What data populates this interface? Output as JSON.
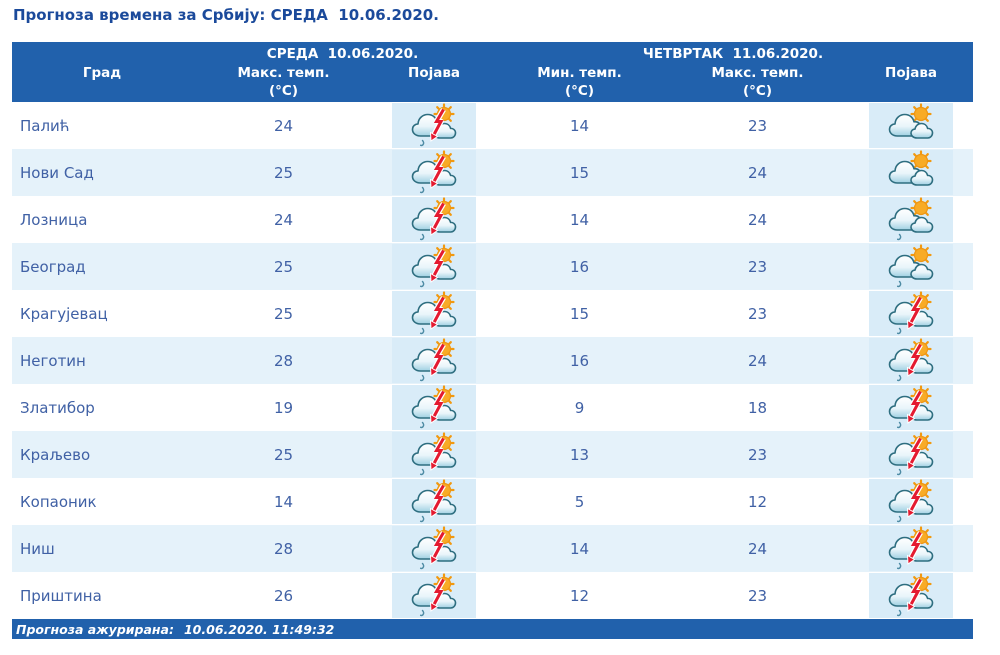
{
  "page": {
    "title": "Прогноза времена за Србију: СРЕДА  10.06.2020.",
    "updated_label": "Прогноза ажурирана:",
    "updated_value": "10.06.2020. 11:49:32"
  },
  "table": {
    "day1_header": "СРЕДА  10.06.2020.",
    "day2_header": "ЧЕТВРТАК  11.06.2020.",
    "columns": {
      "city": "Град",
      "max_temp": "Макс. темп.",
      "min_temp": "Мин. темп.",
      "unit": "(°C)",
      "phenomenon": "Појава"
    },
    "rows": [
      {
        "city": "Палић",
        "wed_max": "24",
        "wed_icon": "sun-cloud-storm-icon",
        "thu_min": "14",
        "thu_max": "23",
        "thu_icon": "partly-cloudy-icon"
      },
      {
        "city": "Нови Сад",
        "wed_max": "25",
        "wed_icon": "sun-cloud-storm-icon",
        "thu_min": "15",
        "thu_max": "24",
        "thu_icon": "partly-cloudy-icon"
      },
      {
        "city": "Лозница",
        "wed_max": "24",
        "wed_icon": "sun-cloud-storm-icon",
        "thu_min": "14",
        "thu_max": "24",
        "thu_icon": "sun-cloud-rain-icon"
      },
      {
        "city": "Београд",
        "wed_max": "25",
        "wed_icon": "sun-cloud-storm-icon",
        "thu_min": "16",
        "thu_max": "23",
        "thu_icon": "sun-cloud-rain-icon"
      },
      {
        "city": "Крагујевац",
        "wed_max": "25",
        "wed_icon": "sun-cloud-storm-icon",
        "thu_min": "15",
        "thu_max": "23",
        "thu_icon": "sun-cloud-storm-icon"
      },
      {
        "city": "Неготин",
        "wed_max": "28",
        "wed_icon": "sun-cloud-storm-icon",
        "thu_min": "16",
        "thu_max": "24",
        "thu_icon": "sun-cloud-storm-icon"
      },
      {
        "city": "Златибор",
        "wed_max": "19",
        "wed_icon": "sun-cloud-storm-icon",
        "thu_min": "9",
        "thu_max": "18",
        "thu_icon": "sun-cloud-storm-icon"
      },
      {
        "city": "Краљево",
        "wed_max": "25",
        "wed_icon": "sun-cloud-storm-icon",
        "thu_min": "13",
        "thu_max": "23",
        "thu_icon": "sun-cloud-storm-icon"
      },
      {
        "city": "Копаоник",
        "wed_max": "14",
        "wed_icon": "sun-cloud-storm-icon",
        "thu_min": "5",
        "thu_max": "12",
        "thu_icon": "sun-cloud-storm-icon"
      },
      {
        "city": "Ниш",
        "wed_max": "28",
        "wed_icon": "sun-cloud-storm-icon",
        "thu_min": "14",
        "thu_max": "24",
        "thu_icon": "sun-cloud-storm-icon"
      },
      {
        "city": "Приштина",
        "wed_max": "26",
        "wed_icon": "sun-cloud-storm-icon",
        "thu_min": "12",
        "thu_max": "23",
        "thu_icon": "sun-cloud-storm-icon"
      }
    ]
  },
  "colors": {
    "header_bar": "#2161ac",
    "title_color": "#1b4a9b",
    "cell_text": "#4061a5",
    "row_stripe": "#e5f2fa",
    "icon_box": "#d9ecf8",
    "sun_orange": "#f8ab26",
    "cloud_outline": "#2e6e80",
    "lightning_red": "#e41a30"
  }
}
